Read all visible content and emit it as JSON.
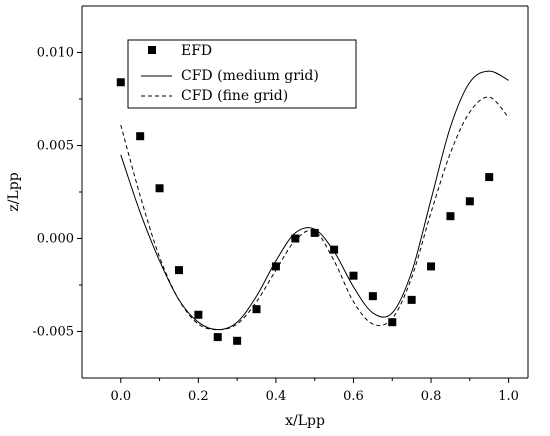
{
  "chart_data": {
    "type": "scatter",
    "xlabel": "x/Lpp",
    "ylabel": "z/Lpp",
    "xlim": [
      -0.1,
      1.05
    ],
    "ylim": [
      -0.0075,
      0.0125
    ],
    "x_ticks": [
      0.0,
      0.2,
      0.4,
      0.6,
      0.8,
      1.0
    ],
    "x_tick_labels": [
      "0.0",
      "0.2",
      "0.4",
      "0.6",
      "0.8",
      "1.0"
    ],
    "y_ticks": [
      -0.005,
      0.0,
      0.005,
      0.01
    ],
    "y_tick_labels": [
      "-0.005",
      "0.000",
      "0.005",
      "0.010"
    ],
    "legend_position": "top-left",
    "grid": false,
    "colors": {
      "axis": "#000000",
      "series": "#000000",
      "background": "#ffffff"
    },
    "series": [
      {
        "name": "EFD",
        "style": "square-markers",
        "x": [
          0.0,
          0.05,
          0.1,
          0.15,
          0.2,
          0.25,
          0.3,
          0.35,
          0.4,
          0.45,
          0.5,
          0.55,
          0.6,
          0.65,
          0.7,
          0.75,
          0.8,
          0.85,
          0.9,
          0.95
        ],
        "y": [
          0.0084,
          0.0055,
          0.0027,
          -0.0017,
          -0.0041,
          -0.0053,
          -0.0055,
          -0.0038,
          -0.0015,
          -0.0,
          0.0003,
          -0.0006,
          -0.002,
          -0.0031,
          -0.0045,
          -0.0033,
          -0.0015,
          0.0012,
          0.002,
          0.0033
        ]
      },
      {
        "name": "CFD (medium grid)",
        "style": "solid-line",
        "x": [
          0.0,
          0.05,
          0.1,
          0.15,
          0.2,
          0.25,
          0.3,
          0.35,
          0.4,
          0.45,
          0.5,
          0.55,
          0.6,
          0.65,
          0.7,
          0.75,
          0.8,
          0.85,
          0.9,
          0.95,
          1.0
        ],
        "y": [
          0.0045,
          0.0014,
          -0.0012,
          -0.0033,
          -0.0045,
          -0.0049,
          -0.0045,
          -0.0031,
          -0.0012,
          0.0003,
          0.0005,
          -0.0007,
          -0.0026,
          -0.004,
          -0.004,
          -0.0018,
          0.0021,
          0.006,
          0.0084,
          0.009,
          0.0085
        ]
      },
      {
        "name": "CFD (fine grid)",
        "style": "dashed-line",
        "x": [
          0.0,
          0.05,
          0.1,
          0.15,
          0.2,
          0.25,
          0.3,
          0.35,
          0.4,
          0.45,
          0.5,
          0.55,
          0.6,
          0.65,
          0.7,
          0.75,
          0.8,
          0.85,
          0.9,
          0.95,
          1.0
        ],
        "y": [
          0.0061,
          0.0023,
          -0.001,
          -0.0033,
          -0.0046,
          -0.0049,
          -0.0046,
          -0.0034,
          -0.0017,
          -0.0001,
          0.0004,
          -0.0012,
          -0.0034,
          -0.0046,
          -0.0043,
          -0.0021,
          0.0014,
          0.0046,
          0.0068,
          0.0076,
          0.0065
        ]
      }
    ]
  }
}
